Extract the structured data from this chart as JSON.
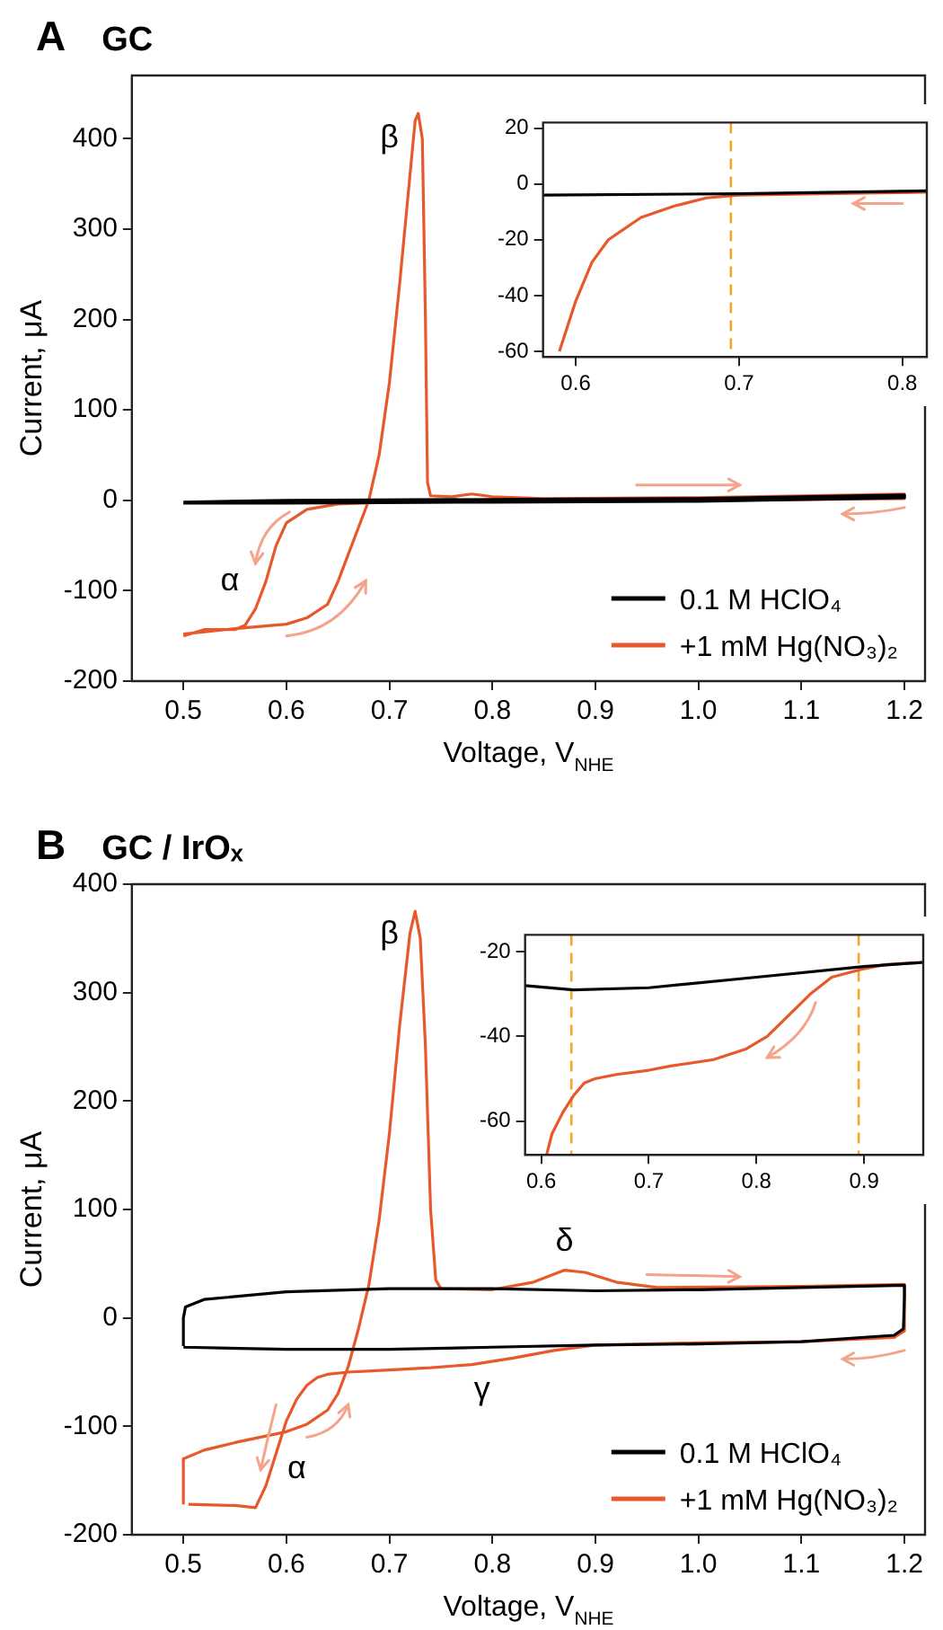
{
  "chart_data": [
    {
      "type": "line",
      "title": "GC",
      "annotations": [
        "A",
        "β",
        "α"
      ],
      "xlabel": "Voltage, V$_{NHE}$",
      "ylabel": "Current, μA",
      "xlim": [
        0.45,
        1.22
      ],
      "ylim": [
        -200,
        470
      ],
      "xticks": [
        0.5,
        0.6,
        0.7,
        0.8,
        0.9,
        {
          "value": 1,
          "label": "1.0"
        },
        1.1,
        1.2
      ],
      "yticks": [
        -200,
        -100,
        0,
        100,
        200,
        300,
        400
      ],
      "legend": "bottom right",
      "series": [
        {
          "name": "0.1 M HClO₄",
          "color": "#000000",
          "x": [
            0.5,
            0.6,
            0.8,
            1.0,
            1.2,
            1.2,
            1.0,
            0.8,
            0.6,
            0.5
          ],
          "values": [
            -2,
            0,
            1,
            2,
            6,
            3,
            -1,
            -2,
            -3,
            -3
          ]
        },
        {
          "name": "+1 mM Hg(NO₃)₂",
          "color": "#e8582a",
          "x": [
            0.5,
            0.55,
            0.6,
            0.62,
            0.64,
            0.65,
            0.66,
            0.67,
            0.68,
            0.69,
            0.7,
            0.71,
            0.72,
            0.725,
            0.728,
            0.732,
            0.735,
            0.737,
            0.74,
            0.76,
            0.78,
            0.8,
            0.85,
            1.0,
            1.2,
            1.2,
            1.0,
            0.8,
            0.7,
            0.65,
            0.62,
            0.6,
            0.59,
            0.58,
            0.57,
            0.56,
            0.55,
            0.52,
            0.5
          ],
          "values": [
            -148,
            -142,
            -137,
            -130,
            -115,
            -90,
            -60,
            -30,
            0,
            50,
            130,
            240,
            360,
            420,
            428,
            400,
            200,
            20,
            5,
            4,
            7,
            4,
            2,
            3,
            7,
            2,
            0,
            -1,
            -2,
            -4,
            -10,
            -25,
            -50,
            -90,
            -120,
            -138,
            -143,
            -143,
            -150
          ]
        }
      ]
    },
    {
      "type": "line",
      "xlim": [
        0.58,
        0.815
      ],
      "ylim": [
        -62,
        22
      ],
      "xticks": [
        0.6,
        0.7,
        0.8
      ],
      "yticks": [
        -60,
        -40,
        -20,
        0,
        20
      ],
      "ref_lines": [
        {
          "axis": "x",
          "value": 0.695,
          "color": "#f5a623",
          "line_style": "dashed"
        }
      ],
      "series": [
        {
          "color": "#000000",
          "x": [
            0.58,
            0.7,
            0.815
          ],
          "values": [
            -4,
            -3.5,
            -2.5
          ]
        },
        {
          "color": "#e8582a",
          "x": [
            0.815,
            0.75,
            0.7,
            0.68,
            0.66,
            0.64,
            0.62,
            0.61,
            0.6,
            0.59
          ],
          "values": [
            -3,
            -3.5,
            -4,
            -5,
            -8,
            -12,
            -20,
            -28,
            -42,
            -60
          ]
        }
      ]
    },
    {
      "type": "line",
      "title": "GC / IrOₓ",
      "annotations": [
        "B",
        "β",
        "δ",
        "γ",
        "α"
      ],
      "xlabel": "Voltage, V$_{NHE}$",
      "ylabel": "Current, μA",
      "xlim": [
        0.45,
        1.22
      ],
      "ylim": [
        -200,
        400
      ],
      "xticks": [
        0.5,
        0.6,
        0.7,
        0.8,
        0.9,
        {
          "value": 1,
          "label": "1.0"
        },
        1.1,
        1.2
      ],
      "yticks": [
        -200,
        -100,
        0,
        100,
        200,
        300,
        400
      ],
      "legend": "bottom right",
      "series": [
        {
          "name": "0.1 M HClO₄",
          "color": "#000000",
          "x": [
            0.5,
            0.5,
            0.502,
            0.52,
            0.6,
            0.7,
            0.8,
            0.9,
            1.0,
            1.1,
            1.2,
            1.2,
            1.199,
            1.19,
            1.1,
            1.0,
            0.9,
            0.8,
            0.7,
            0.6,
            0.5
          ],
          "values": [
            -26,
            0,
            10,
            17,
            24,
            27,
            27,
            25,
            26,
            28,
            30,
            20,
            -10,
            -16,
            -22,
            -24,
            -25,
            -27,
            -29,
            -29,
            -27
          ]
        },
        {
          "name": "+1 mM Hg(NO₃)₂",
          "color": "#e8582a",
          "x": [
            0.5,
            0.5,
            0.52,
            0.55,
            0.6,
            0.62,
            0.64,
            0.65,
            0.66,
            0.67,
            0.68,
            0.69,
            0.7,
            0.71,
            0.72,
            0.725,
            0.73,
            0.735,
            0.74,
            0.745,
            0.75,
            0.8,
            0.84,
            0.87,
            0.89,
            0.92,
            0.96,
            1.1,
            1.2,
            1.2,
            1.19,
            1.1,
            1.0,
            0.9,
            0.86,
            0.82,
            0.78,
            0.74,
            0.7,
            0.66,
            0.64,
            0.63,
            0.62,
            0.61,
            0.6,
            0.59,
            0.58,
            0.57,
            0.55,
            0.505
          ],
          "values": [
            -172,
            -130,
            -122,
            -115,
            -105,
            -98,
            -85,
            -70,
            -45,
            -10,
            30,
            90,
            170,
            270,
            355,
            375,
            350,
            250,
            100,
            35,
            27,
            26,
            33,
            44,
            42,
            33,
            28,
            29,
            31,
            -12,
            -18,
            -22,
            -23,
            -25,
            -30,
            -37,
            -43,
            -46,
            -48,
            -50,
            -52,
            -55,
            -62,
            -75,
            -95,
            -125,
            -155,
            -175,
            -173,
            -172
          ]
        }
      ]
    },
    {
      "type": "line",
      "xlim": [
        0.585,
        0.955
      ],
      "ylim": [
        -68,
        -16
      ],
      "xticks": [
        0.6,
        0.7,
        0.8,
        0.9
      ],
      "yticks": [
        -60,
        -40,
        -20
      ],
      "ref_lines": [
        {
          "axis": "x",
          "value": 0.628,
          "color": "#f5a623",
          "line_style": "dashed"
        },
        {
          "axis": "x",
          "value": 0.895,
          "color": "#f5a623",
          "line_style": "dashed"
        }
      ],
      "series": [
        {
          "color": "#000000",
          "x": [
            0.585,
            0.63,
            0.7,
            0.8,
            0.9,
            0.955
          ],
          "values": [
            -28,
            -29,
            -28.5,
            -26,
            -23.5,
            -22.5
          ]
        },
        {
          "color": "#e8582a",
          "x": [
            0.955,
            0.92,
            0.9,
            0.87,
            0.85,
            0.83,
            0.81,
            0.79,
            0.76,
            0.72,
            0.7,
            0.67,
            0.65,
            0.64,
            0.63,
            0.62,
            0.61,
            0.605
          ],
          "values": [
            -22.5,
            -23,
            -24,
            -26,
            -30,
            -35,
            -40,
            -43,
            -45.5,
            -47,
            -48,
            -49,
            -50,
            -51,
            -54,
            -58,
            -63,
            -68
          ]
        }
      ]
    }
  ]
}
